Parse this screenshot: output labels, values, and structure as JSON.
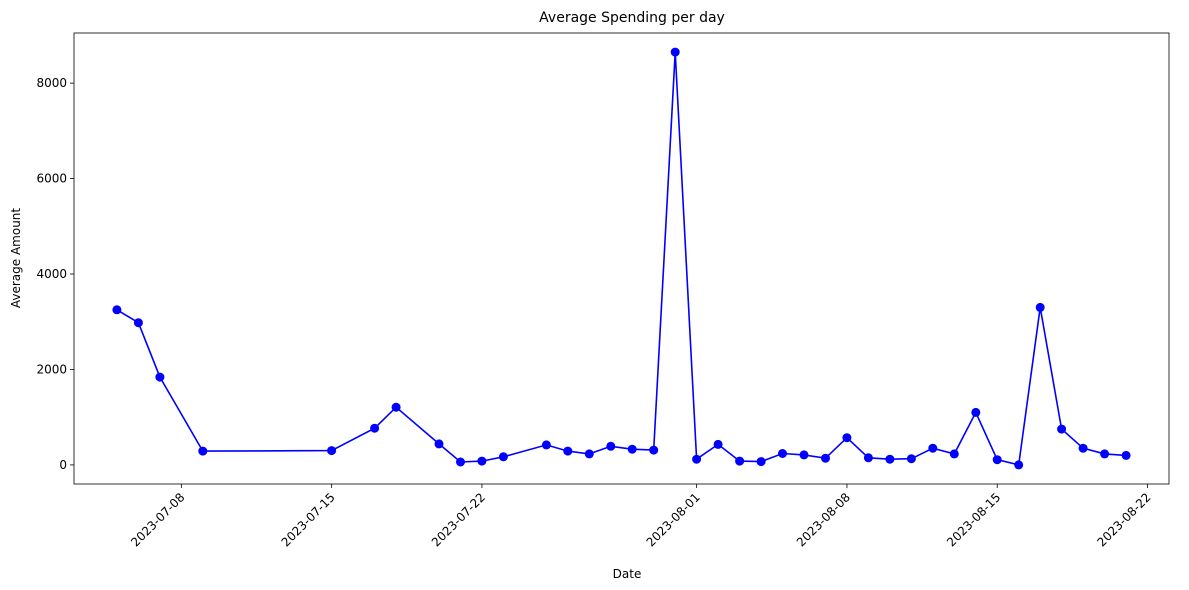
{
  "chart_data": {
    "type": "line",
    "title": "Average Spending per day",
    "xlabel": "Date",
    "ylabel": "Average Amount",
    "x_type": "date",
    "xlim": [
      "2023-07-03",
      "2023-08-23"
    ],
    "ylim": [
      -400,
      9050
    ],
    "x_ticks": [
      "2023-07-08",
      "2023-07-15",
      "2023-07-22",
      "2023-08-01",
      "2023-08-08",
      "2023-08-15",
      "2023-08-22"
    ],
    "y_ticks": [
      0,
      2000,
      4000,
      6000,
      8000
    ],
    "grid": false,
    "legend": "none",
    "colors": {
      "line": "#0000ff",
      "marker": "#0000ff"
    },
    "series": [
      {
        "x": [
          "2023-07-05",
          "2023-07-06",
          "2023-07-07",
          "2023-07-09",
          "2023-07-15",
          "2023-07-17",
          "2023-07-18",
          "2023-07-20",
          "2023-07-21",
          "2023-07-22",
          "2023-07-23",
          "2023-07-25",
          "2023-07-26",
          "2023-07-27",
          "2023-07-28",
          "2023-07-29",
          "2023-07-30",
          "2023-07-31",
          "2023-08-01",
          "2023-08-02",
          "2023-08-03",
          "2023-08-04",
          "2023-08-05",
          "2023-08-06",
          "2023-08-07",
          "2023-08-08",
          "2023-08-09",
          "2023-08-10",
          "2023-08-11",
          "2023-08-12",
          "2023-08-13",
          "2023-08-14",
          "2023-08-15",
          "2023-08-16",
          "2023-08-17",
          "2023-08-18",
          "2023-08-19",
          "2023-08-20",
          "2023-08-21"
        ],
        "values": [
          3250,
          2980,
          1840,
          290,
          300,
          770,
          1210,
          440,
          60,
          80,
          170,
          420,
          290,
          230,
          390,
          330,
          310,
          8650,
          120,
          430,
          80,
          70,
          240,
          210,
          140,
          570,
          150,
          120,
          130,
          350,
          230,
          1100,
          110,
          0,
          3300,
          750,
          350,
          230,
          200
        ]
      }
    ]
  }
}
